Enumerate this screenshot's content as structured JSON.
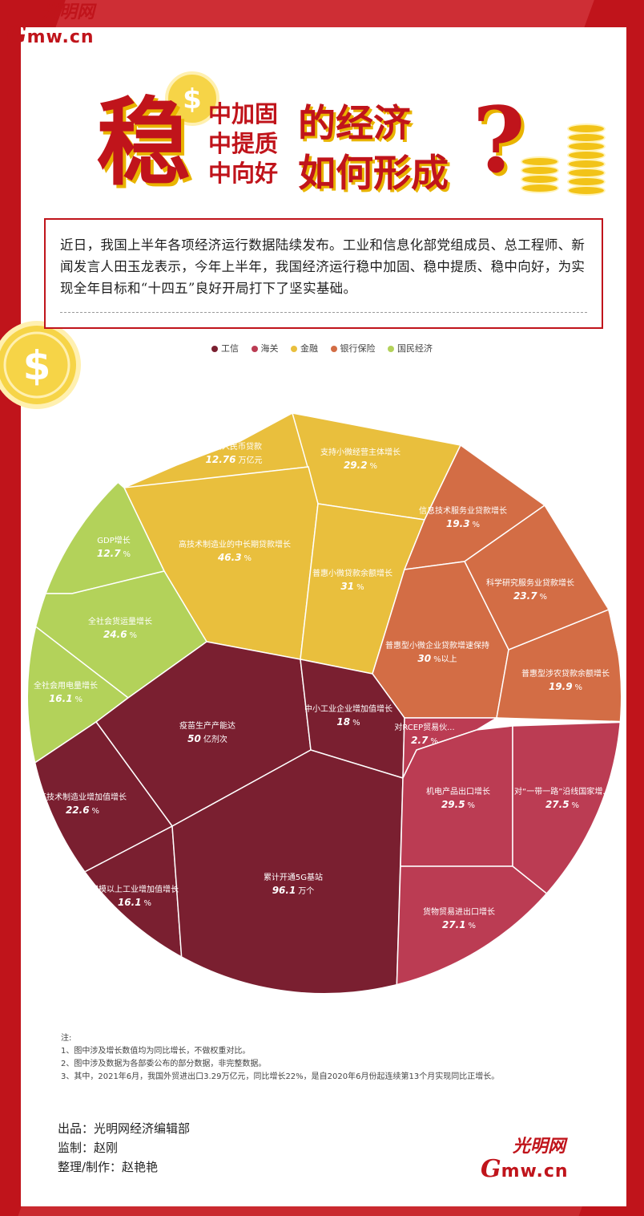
{
  "logo": {
    "script": "光明网",
    "g": "G",
    "domain": "mw.cn"
  },
  "title": {
    "big": "稳",
    "mid": [
      "中加固",
      "中提质",
      "中向好"
    ],
    "right": "的经济\n如何形成",
    "qmark": "?"
  },
  "intro": "近日，我国上半年各项经济运行数据陆续发布。工业和信息化部党组成员、总工程师、新闻发言人田玉龙表示，今年上半年，我国经济运行稳中加固、稳中提质、稳中向好，为实现全年目标和“十四五”良好开局打下了坚实基础。",
  "colors": {
    "gongxin": "#7a1f30",
    "haiguan": "#bb3c53",
    "jinrong": "#e9bf3d",
    "yinbao": "#d36d45",
    "guomin": "#b3d25a",
    "brand": "#c0141b"
  },
  "chart_data": {
    "type": "treemap",
    "legend": [
      {
        "name": "工信",
        "color": "#7a1f30"
      },
      {
        "name": "海关",
        "color": "#bb3c53"
      },
      {
        "name": "金融",
        "color": "#e9bf3d"
      },
      {
        "name": "银行保险",
        "color": "#d36d45"
      },
      {
        "name": "国民经济",
        "color": "#b3d25a"
      }
    ],
    "cells": [
      {
        "group": "金融",
        "label": "新增人民币贷款",
        "value": "12.76",
        "unit": "万亿元"
      },
      {
        "group": "金融",
        "label": "支持小微经营主体增长",
        "value": "29.2",
        "unit": "%"
      },
      {
        "group": "金融",
        "label": "高技术制造业的中长期贷款增长",
        "value": "46.3",
        "unit": "%"
      },
      {
        "group": "金融",
        "label": "普惠小微贷款余额增长",
        "value": "31",
        "unit": "%"
      },
      {
        "group": "银行保险",
        "label": "信息技术服务业贷款增长",
        "value": "19.3",
        "unit": "%"
      },
      {
        "group": "银行保险",
        "label": "科学研究服务业贷款增长",
        "value": "23.7",
        "unit": "%"
      },
      {
        "group": "银行保险",
        "label": "普惠型小微企业贷款增速保持",
        "value": "30",
        "unit": "%以上"
      },
      {
        "group": "银行保险",
        "label": "普惠型涉农贷款余额增长",
        "value": "19.9",
        "unit": "%"
      },
      {
        "group": "国民经济",
        "label": "GDP增长",
        "value": "12.7",
        "unit": "%"
      },
      {
        "group": "国民经济",
        "label": "全社会货运量增长",
        "value": "24.6",
        "unit": "%"
      },
      {
        "group": "国民经济",
        "label": "全社会用电量增长",
        "value": "16.1",
        "unit": "%"
      },
      {
        "group": "工信",
        "label": "疫苗生产产能达",
        "value": "50",
        "unit": "亿剂次"
      },
      {
        "group": "工信",
        "label": "中小工业企业增加值增长",
        "value": "18",
        "unit": "%"
      },
      {
        "group": "工信",
        "label": "高技术制造业增加值增长",
        "value": "22.6",
        "unit": "%"
      },
      {
        "group": "工信",
        "label": "规模以上工业增加值增长",
        "value": "16.1",
        "unit": "%"
      },
      {
        "group": "工信",
        "label": "累计开通5G基站",
        "value": "96.1",
        "unit": "万个"
      },
      {
        "group": "海关",
        "label": "对RCEP贸易伙...",
        "value": "2.7",
        "unit": "%"
      },
      {
        "group": "海关",
        "label": "机电产品出口增长",
        "value": "29.5",
        "unit": "%"
      },
      {
        "group": "海关",
        "label": "对“一带一路”沿线国家增...",
        "value": "27.5",
        "unit": "%"
      },
      {
        "group": "海关",
        "label": "货物贸易进出口增长",
        "value": "27.1",
        "unit": "%"
      }
    ]
  },
  "notes": [
    "注:",
    "1、图中涉及增长数值均为同比增长，不做权重对比。",
    "2、图中涉及数据为各部委公布的部分数据，非完整数据。",
    "3、其中，2021年6月，我国外贸进出口3.29万亿元，同比增长22%，是自2020年6月份起连续第13个月实现同比正增长。"
  ],
  "credits": [
    "出品：光明网经济编辑部",
    "监制：赵刚",
    "整理/制作：赵艳艳"
  ]
}
